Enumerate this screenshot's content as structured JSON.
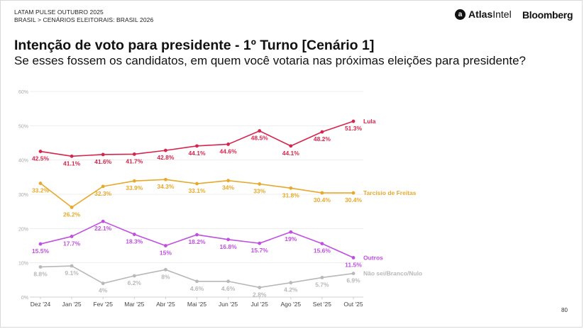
{
  "header": {
    "kicker_line1": "LATAM PULSE OUTUBRO 2025",
    "kicker_line2": "BRASIL > CENÁRIOS ELEITORAIS: BRASIL 2026",
    "logo_atlas_mark": "a",
    "logo_atlas_part1": "Atlas",
    "logo_atlas_part2": "Intel",
    "logo_bloomberg": "Bloomberg"
  },
  "title": "Intenção de voto para presidente - 1º Turno [Cenário 1]",
  "subtitle": "Se esses fossem os candidatos, em quem você votaria nas próximas eleições para presidente?",
  "page_number": "80",
  "chart_data": {
    "type": "line",
    "x": [
      "Dez '24",
      "Jan '25",
      "Fev '25",
      "Mar '25",
      "Abr '25",
      "Mai '25",
      "Jun '25",
      "Jul '25",
      "Ago '25",
      "Set '25",
      "Out '25"
    ],
    "yticks": [
      "0%",
      "10%",
      "20%",
      "30%",
      "40%",
      "50%",
      "60%"
    ],
    "ylim": [
      0,
      60
    ],
    "grid": true,
    "legend": "end-of-line labels",
    "series": [
      {
        "name": "Lula",
        "color": "#d6254d",
        "values": [
          42.5,
          41.1,
          41.6,
          41.7,
          42.8,
          44.1,
          44.6,
          48.5,
          44.1,
          48.2,
          51.3
        ],
        "labels": [
          "42.5%",
          "41.1%",
          "41.6%",
          "41.7%",
          "42.8%",
          "44.1%",
          "44.6%",
          "48.5%",
          "44.1%",
          "48.2%",
          "51.3%"
        ]
      },
      {
        "name": "Tarcísio de Freitas",
        "color": "#e6a92b",
        "values": [
          33.2,
          26.2,
          32.3,
          33.9,
          34.3,
          33.1,
          34,
          33,
          31.8,
          30.4,
          30.4
        ],
        "labels": [
          "33.2%",
          "26.2%",
          "32.3%",
          "33.9%",
          "34.3%",
          "33.1%",
          "34%",
          "33%",
          "31.8%",
          "30.4%",
          "30.4%"
        ]
      },
      {
        "name": "Outros",
        "color": "#c04fe0",
        "values": [
          15.5,
          17.7,
          22.1,
          18.3,
          15,
          18.2,
          16.8,
          15.7,
          19,
          15.6,
          11.5
        ],
        "labels": [
          "15.5%",
          "17.7%",
          "22.1%",
          "18.3%",
          "15%",
          "18.2%",
          "16.8%",
          "15.7%",
          "19%",
          "15.6%",
          "11.5%"
        ]
      },
      {
        "name": "Não sei/Branco/Nulo",
        "color": "#b8b8b8",
        "values": [
          8.8,
          9.1,
          4,
          6.2,
          8,
          4.6,
          4.6,
          2.8,
          4.2,
          5.7,
          6.9
        ],
        "labels": [
          "8.8%",
          "9.1%",
          "4%",
          "6.2%",
          "8%",
          "4.6%",
          "4.6%",
          "2.8%",
          "4.2%",
          "5.7%",
          "6.9%"
        ]
      }
    ]
  }
}
